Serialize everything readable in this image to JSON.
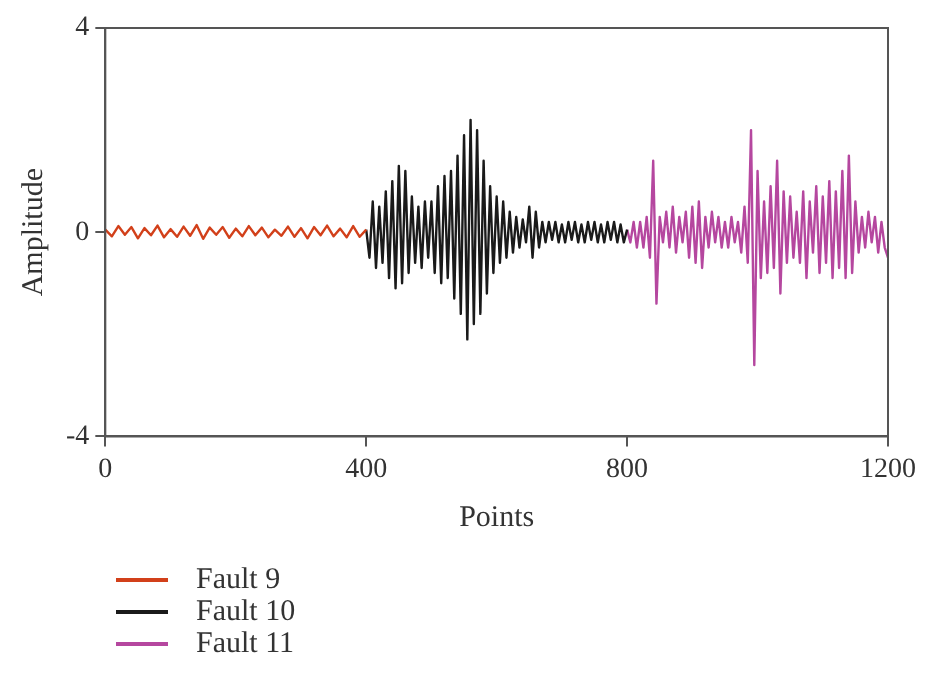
{
  "chart_data": {
    "type": "line",
    "xlabel": "Points",
    "ylabel": "Amplitude",
    "xlim": [
      0,
      1200
    ],
    "xticks": [
      0,
      400,
      800,
      1200
    ],
    "ylim": [
      -4,
      4
    ],
    "yticks": [
      -4,
      0,
      4
    ],
    "grid": false,
    "legend": "bottom left",
    "marker": "none",
    "line_style": "solid",
    "series": [
      {
        "name": "Fault 9",
        "color": "#d2401a",
        "x": [
          0,
          10,
          20,
          30,
          40,
          50,
          60,
          70,
          80,
          90,
          100,
          110,
          120,
          130,
          140,
          150,
          160,
          170,
          180,
          190,
          200,
          210,
          220,
          230,
          240,
          250,
          260,
          270,
          280,
          290,
          300,
          310,
          320,
          330,
          340,
          350,
          360,
          370,
          380,
          390,
          400
        ],
        "values": [
          0.05,
          -0.08,
          0.12,
          -0.05,
          0.1,
          -0.12,
          0.08,
          -0.06,
          0.13,
          -0.1,
          0.06,
          -0.09,
          0.11,
          -0.07,
          0.14,
          -0.13,
          0.09,
          -0.05,
          0.1,
          -0.11,
          0.07,
          -0.08,
          0.12,
          -0.06,
          0.09,
          -0.1,
          0.05,
          -0.07,
          0.11,
          -0.09,
          0.08,
          -0.12,
          0.1,
          -0.06,
          0.13,
          -0.08,
          0.07,
          -0.1,
          0.12,
          -0.09,
          0.05
        ]
      },
      {
        "name": "Fault 10",
        "color": "#1a1a1a",
        "x": [
          400,
          405,
          410,
          415,
          420,
          425,
          430,
          435,
          440,
          445,
          450,
          455,
          460,
          465,
          470,
          475,
          480,
          485,
          490,
          495,
          500,
          505,
          510,
          515,
          520,
          525,
          530,
          535,
          540,
          545,
          550,
          555,
          560,
          565,
          570,
          575,
          580,
          585,
          590,
          595,
          600,
          605,
          610,
          615,
          620,
          625,
          630,
          635,
          640,
          645,
          650,
          655,
          660,
          665,
          670,
          675,
          680,
          685,
          690,
          695,
          700,
          705,
          710,
          715,
          720,
          725,
          730,
          735,
          740,
          745,
          750,
          755,
          760,
          765,
          770,
          775,
          780,
          785,
          790,
          795,
          800
        ],
        "values": [
          0.05,
          -0.5,
          0.6,
          -0.7,
          0.5,
          -0.6,
          0.8,
          -0.9,
          1.0,
          -1.1,
          1.3,
          -1.0,
          1.2,
          -0.8,
          0.7,
          -0.6,
          0.5,
          -0.7,
          0.6,
          -0.5,
          0.6,
          -0.8,
          0.9,
          -1.0,
          1.1,
          -0.9,
          1.2,
          -1.3,
          1.5,
          -1.6,
          1.9,
          -2.1,
          2.2,
          -1.8,
          2.0,
          -1.6,
          1.4,
          -1.2,
          0.9,
          -0.8,
          0.7,
          -0.6,
          0.6,
          -0.5,
          0.4,
          -0.4,
          0.3,
          -0.3,
          0.25,
          -0.2,
          0.5,
          -0.5,
          0.4,
          -0.3,
          0.2,
          -0.2,
          0.2,
          -0.15,
          0.2,
          -0.2,
          0.15,
          -0.2,
          0.2,
          -0.15,
          0.2,
          -0.2,
          0.15,
          -0.2,
          0.2,
          -0.15,
          0.2,
          -0.2,
          0.15,
          -0.2,
          0.2,
          -0.15,
          0.2,
          -0.2,
          0.15,
          -0.2,
          0.05
        ]
      },
      {
        "name": "Fault 11",
        "color": "#b5479f",
        "x": [
          800,
          805,
          810,
          815,
          820,
          825,
          830,
          835,
          840,
          845,
          850,
          855,
          860,
          865,
          870,
          875,
          880,
          885,
          890,
          895,
          900,
          905,
          910,
          915,
          920,
          925,
          930,
          935,
          940,
          945,
          950,
          955,
          960,
          965,
          970,
          975,
          980,
          985,
          990,
          995,
          1000,
          1005,
          1010,
          1015,
          1020,
          1025,
          1030,
          1035,
          1040,
          1045,
          1050,
          1055,
          1060,
          1065,
          1070,
          1075,
          1080,
          1085,
          1090,
          1095,
          1100,
          1105,
          1110,
          1115,
          1120,
          1125,
          1130,
          1135,
          1140,
          1145,
          1150,
          1155,
          1160,
          1165,
          1170,
          1175,
          1180,
          1185,
          1190,
          1195,
          1200
        ],
        "values": [
          0.05,
          -0.2,
          0.2,
          -0.3,
          0.2,
          -0.3,
          0.3,
          -0.5,
          1.4,
          -1.4,
          0.3,
          -0.2,
          0.4,
          -0.3,
          0.5,
          -0.4,
          0.3,
          -0.2,
          0.4,
          -0.5,
          0.5,
          -0.6,
          0.6,
          -0.7,
          0.3,
          -0.3,
          0.4,
          -0.2,
          0.3,
          -0.3,
          0.2,
          -0.3,
          0.3,
          -0.2,
          0.2,
          -0.4,
          0.5,
          -0.6,
          2.0,
          -2.6,
          1.2,
          -0.9,
          0.6,
          -0.8,
          0.9,
          -0.7,
          1.4,
          -1.2,
          0.8,
          -0.6,
          0.7,
          -0.5,
          0.4,
          -0.6,
          0.8,
          -0.9,
          0.6,
          -0.4,
          0.9,
          -0.8,
          0.7,
          -0.6,
          1.0,
          -0.9,
          0.8,
          -0.7,
          1.2,
          -0.9,
          1.5,
          -0.8,
          0.6,
          -0.4,
          0.3,
          -0.3,
          0.4,
          -0.2,
          0.3,
          -0.4,
          0.2,
          -0.3,
          -0.5
        ]
      }
    ]
  }
}
